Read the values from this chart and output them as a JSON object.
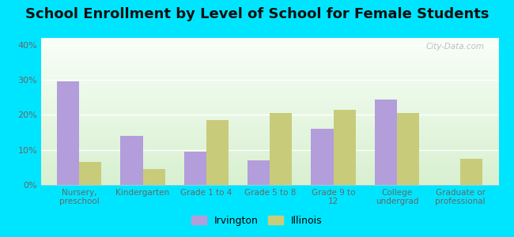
{
  "title": "School Enrollment by Level of School for Female Students",
  "categories": [
    "Nursery,\npreschool",
    "Kindergarten",
    "Grade 1 to 4",
    "Grade 5 to 8",
    "Grade 9 to\n12",
    "College\nundergrad",
    "Graduate or\nprofessional"
  ],
  "irvington": [
    29.5,
    14.0,
    9.5,
    7.0,
    16.0,
    24.5,
    0.0
  ],
  "illinois": [
    6.5,
    4.5,
    18.5,
    20.5,
    21.5,
    20.5,
    7.5
  ],
  "irvington_color": "#b39ddb",
  "illinois_color": "#c8cc7a",
  "background_outer": "#00e5ff",
  "ylim": [
    0,
    42
  ],
  "yticks": [
    0,
    10,
    20,
    30,
    40
  ],
  "ytick_labels": [
    "0%",
    "10%",
    "20%",
    "30%",
    "40%"
  ],
  "title_fontsize": 13,
  "legend_label_irvington": "Irvington",
  "legend_label_illinois": "Illinois",
  "bar_width": 0.35
}
